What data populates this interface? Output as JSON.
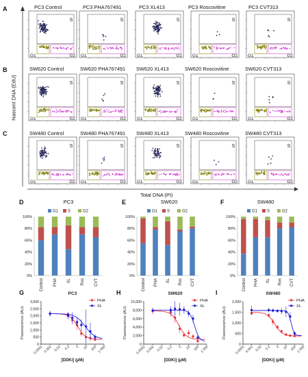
{
  "panel_letters": {
    "A": "A",
    "B": "B",
    "C": "C",
    "D": "D",
    "E": "E",
    "F": "F",
    "G": "G",
    "H": "H",
    "I": "I"
  },
  "flow": {
    "y_axis_label": "Nascent DNA (EdU)",
    "x_axis_label": "Total DNA (PI)",
    "gate_labels": {
      "s": "S",
      "g1": "G1",
      "g2": "G2"
    },
    "rows": [
      {
        "titles": [
          "PC3 Control",
          "PC3 PHA767491",
          "PC3 XL413",
          "PC3 Roscovitine",
          "PC3 CVT313"
        ]
      },
      {
        "titles": [
          "SW620 Control",
          "SW620 PHA767491",
          "SW620 XL413",
          "SW620 Roscovitine",
          "SW620 CVT313"
        ]
      },
      {
        "titles": [
          "SW480 Control",
          "SW480 PHA767491",
          "SW480 XL413",
          "SW480 Roscovitine",
          "SW480 CVT313"
        ]
      }
    ]
  },
  "colors": {
    "g1": "#4f81bd",
    "s": "#c0504d",
    "g2": "#9bbb59",
    "pha": "#e8333a",
    "xl": "#1f1fd6",
    "density": "#28285a",
    "g1gate": "#8a8a1a",
    "g2gate": "#d24fd2"
  },
  "chart_data": [
    {
      "type": "bar",
      "stacked": true,
      "title": "PC3",
      "categories": [
        "Control",
        "PHA",
        "XL",
        "Ros",
        "CVT"
      ],
      "series": [
        {
          "name": "G1",
          "values": [
            60,
            70,
            45,
            70,
            65
          ]
        },
        {
          "name": "S",
          "values": [
            22,
            12,
            40,
            12,
            17
          ]
        },
        {
          "name": "G2",
          "values": [
            18,
            18,
            15,
            18,
            18
          ]
        }
      ],
      "ylim": [
        0,
        100
      ],
      "ytick_labels": [
        "0%",
        "20%",
        "40%",
        "60%",
        "80%",
        "100%"
      ],
      "legend": "top"
    },
    {
      "type": "bar",
      "stacked": true,
      "title": "SW620",
      "categories": [
        "Control",
        "PHA",
        "XL",
        "Ros",
        "CVT"
      ],
      "series": [
        {
          "name": "G1",
          "values": [
            55,
            78,
            52,
            75,
            80
          ]
        },
        {
          "name": "S",
          "values": [
            42,
            4,
            40,
            3,
            3
          ]
        },
        {
          "name": "G2",
          "values": [
            3,
            18,
            8,
            22,
            17
          ]
        }
      ],
      "ylim": [
        0,
        100
      ],
      "ytick_labels": [
        "0%",
        "20%",
        "40%",
        "60%",
        "80%",
        "100%"
      ],
      "legend": "top"
    },
    {
      "type": "bar",
      "stacked": true,
      "title": "SW480",
      "categories": [
        "Control",
        "PHA",
        "XL",
        "Ros",
        "CVT"
      ],
      "series": [
        {
          "name": "G1",
          "values": [
            37,
            65,
            65,
            80,
            82
          ]
        },
        {
          "name": "S",
          "values": [
            59,
            31,
            29,
            10,
            8
          ]
        },
        {
          "name": "G2",
          "values": [
            4,
            4,
            6,
            10,
            10
          ]
        }
      ],
      "ylim": [
        0,
        100
      ],
      "ytick_labels": [
        "0%",
        "20%",
        "40%",
        "60%",
        "80%",
        "100%"
      ],
      "legend": "top"
    },
    {
      "type": "scatter",
      "title": "PC3",
      "xscale": "log",
      "xlabel": "[DDKi] (µM)",
      "ylabel": "Fluorescence (AU)",
      "xlim": [
        0.0001,
        1000
      ],
      "ylim": [
        0,
        3000
      ],
      "xtick_labels": [
        "0.0001",
        "0.001",
        "0.01",
        "0.1",
        "1",
        "10",
        "100",
        "1 000"
      ],
      "ytick_labels": [
        "0",
        "500",
        "1,000",
        "1,500",
        "2,000",
        "2,500",
        "3,000"
      ],
      "series": [
        {
          "name": "PHA",
          "x": [
            0.001,
            0.1,
            0.3,
            1,
            3,
            10,
            30,
            100
          ],
          "y": [
            2150,
            2100,
            1700,
            1350,
            750,
            500,
            420,
            330
          ],
          "err": [
            200,
            120,
            300,
            350,
            200,
            150,
            200,
            150
          ],
          "fit": {
            "top": 2150,
            "bottom": 330,
            "ec50": 1.2,
            "hill": 1
          }
        },
        {
          "name": "XL",
          "x": [
            0.001,
            0.1,
            0.3,
            1,
            3,
            10,
            30,
            100
          ],
          "y": [
            2150,
            2000,
            1850,
            1550,
            1350,
            1250,
            900,
            500
          ],
          "err": [
            200,
            250,
            400,
            300,
            400,
            1200,
            600,
            200
          ],
          "fit": {
            "top": 2150,
            "bottom": 350,
            "ec50": 8,
            "hill": 0.8
          }
        }
      ],
      "legend": "top-right"
    },
    {
      "type": "scatter",
      "title": "SW620",
      "xscale": "log",
      "xlabel": "[DDKi] (µM)",
      "ylabel": "Fluorescence (AU)",
      "xlim": [
        0.0001,
        1000
      ],
      "ylim": [
        0,
        10000
      ],
      "xtick_labels": [
        "0.0001",
        "0.001",
        "0.01",
        "0.1",
        "1",
        "10",
        "100",
        "1 000"
      ],
      "ytick_labels": [
        "0",
        "2,000",
        "4,000",
        "6,000",
        "8,000",
        "10,000"
      ],
      "series": [
        {
          "name": "PHA",
          "x": [
            0.001,
            0.1,
            0.3,
            1,
            3,
            10,
            30,
            100
          ],
          "y": [
            7800,
            7500,
            6200,
            3600,
            2100,
            2600,
            1800,
            700
          ],
          "err": [
            800,
            1000,
            1200,
            900,
            500,
            800,
            500,
            300
          ],
          "fit": {
            "top": 7800,
            "bottom": 1100,
            "ec50": 0.8,
            "hill": 1
          }
        },
        {
          "name": "XL",
          "x": [
            0.001,
            0.1,
            0.3,
            1,
            3,
            10,
            30,
            100
          ],
          "y": [
            7900,
            8000,
            8300,
            8200,
            8100,
            7200,
            6000,
            1500
          ],
          "err": [
            500,
            900,
            1800,
            1500,
            900,
            800,
            900,
            500
          ],
          "fit": {
            "top": 8000,
            "bottom": 600,
            "ec50": 45,
            "hill": 1.6
          }
        }
      ],
      "legend": "top-right"
    },
    {
      "type": "scatter",
      "title": "SW480",
      "xscale": "log",
      "xlabel": "[DDKi] (µM)",
      "ylabel": "Fluorescence (AU)",
      "xlim": [
        0.0001,
        1000
      ],
      "ylim": [
        0,
        2000
      ],
      "xtick_labels": [
        "0.0001",
        "0.001",
        "0.01",
        "0.1",
        "1",
        "10",
        "100",
        "1 000"
      ],
      "ytick_labels": [
        "0",
        "500",
        "1,000",
        "1,500",
        "2,000"
      ],
      "series": [
        {
          "name": "PHA",
          "x": [
            0.001,
            0.1,
            0.3,
            1,
            3,
            10,
            30,
            100
          ],
          "y": [
            1450,
            1350,
            1050,
            800,
            600,
            450,
            400,
            380
          ],
          "err": [
            80,
            100,
            150,
            100,
            80,
            60,
            50,
            40
          ],
          "fit": {
            "top": 1500,
            "bottom": 380,
            "ec50": 0.5,
            "hill": 1
          }
        },
        {
          "name": "XL",
          "x": [
            0.001,
            0.1,
            0.3,
            1,
            3,
            10,
            30,
            100
          ],
          "y": [
            1600,
            1600,
            1580,
            1560,
            1550,
            1520,
            1300,
            500
          ],
          "err": [
            200,
            100,
            80,
            80,
            150,
            250,
            200,
            100
          ],
          "fit": {
            "top": 1580,
            "bottom": 400,
            "ec50": 40,
            "hill": 2.5
          }
        }
      ],
      "legend": "top-right"
    }
  ]
}
